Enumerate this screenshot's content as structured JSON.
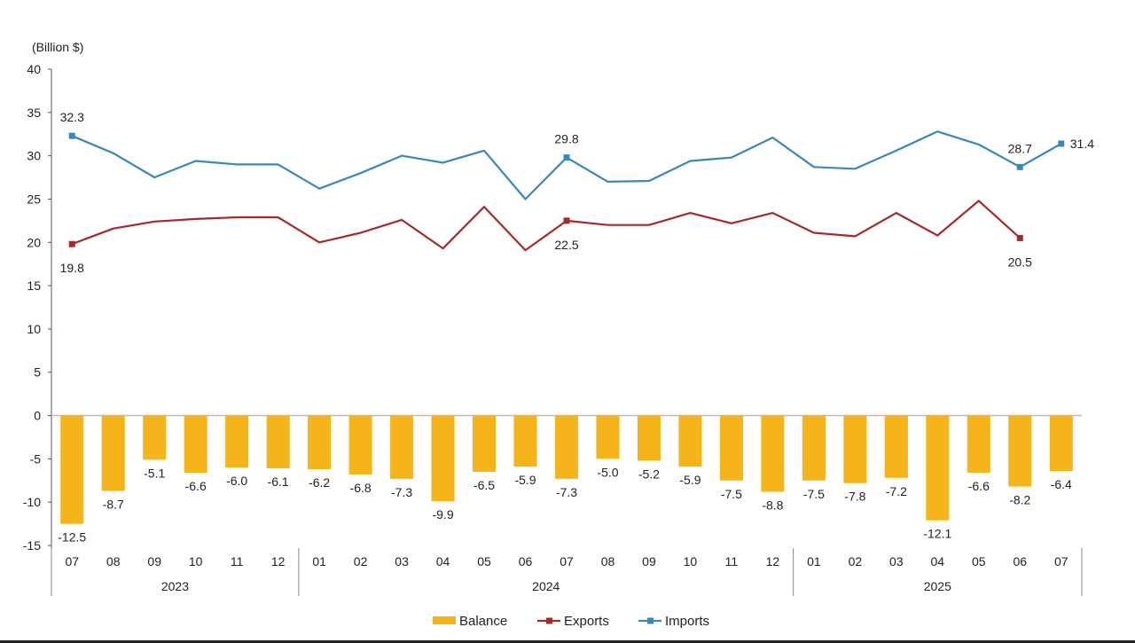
{
  "chart_data": {
    "type": "bar",
    "unit_label": "(Billion $)",
    "ylim": [
      -15,
      40
    ],
    "yticks": [
      40,
      35,
      30,
      25,
      20,
      15,
      10,
      5,
      0,
      -5,
      -10,
      -15
    ],
    "categories": [
      "07",
      "08",
      "09",
      "10",
      "11",
      "12",
      "01",
      "02",
      "03",
      "04",
      "05",
      "06",
      "07",
      "08",
      "09",
      "10",
      "11",
      "12",
      "01",
      "02",
      "03",
      "04",
      "05",
      "06",
      "07"
    ],
    "year_groups": [
      {
        "label": "2023",
        "start": 0,
        "end": 5
      },
      {
        "label": "2024",
        "start": 6,
        "end": 17
      },
      {
        "label": "2025",
        "start": 18,
        "end": 24
      }
    ],
    "series": [
      {
        "name": "Balance",
        "kind": "bar",
        "color": "#F4B41A",
        "values": [
          -12.5,
          -8.7,
          -5.1,
          -6.6,
          -6.0,
          -6.1,
          -6.2,
          -6.8,
          -7.3,
          -9.9,
          -6.5,
          -5.9,
          -7.3,
          -5.0,
          -5.2,
          -5.9,
          -7.5,
          -8.8,
          -7.5,
          -7.8,
          -7.2,
          -12.1,
          -6.6,
          -8.2,
          -6.4
        ],
        "labels": [
          "-12.5",
          "-8.7",
          "-5.1",
          "-6.6",
          "-6.0",
          "-6.1",
          "-6.2",
          "-6.8",
          "-7.3",
          "-9.9",
          "-6.5",
          "-5.9",
          "-7.3",
          "-5.0",
          "-5.2",
          "-5.9",
          "-7.5",
          "-8.8",
          "-7.5",
          "-7.8",
          "-7.2",
          "-12.1",
          "-6.6",
          "-8.2",
          "-6.4"
        ]
      },
      {
        "name": "Exports",
        "kind": "line",
        "color": "#A52A2A",
        "values": [
          19.8,
          21.6,
          22.4,
          22.7,
          22.9,
          22.9,
          20.0,
          21.1,
          22.6,
          19.3,
          24.1,
          19.1,
          22.5,
          22.0,
          22.0,
          23.4,
          22.2,
          23.4,
          21.1,
          20.7,
          23.4,
          20.8,
          24.8,
          20.5,
          null
        ],
        "labeled": [
          {
            "index": 0,
            "text": "19.8"
          },
          {
            "index": 12,
            "text": "22.5"
          },
          {
            "index": 23,
            "text": "20.5"
          }
        ]
      },
      {
        "name": "Imports",
        "kind": "line",
        "color": "#3A87B9",
        "values": [
          32.3,
          30.3,
          27.5,
          29.4,
          29.0,
          29.0,
          26.2,
          28.0,
          30.0,
          29.2,
          30.6,
          25.0,
          29.8,
          27.0,
          27.1,
          29.4,
          29.8,
          32.1,
          28.7,
          28.5,
          30.6,
          32.8,
          31.3,
          28.7,
          31.4
        ],
        "labeled": [
          {
            "index": 0,
            "text": "32.3"
          },
          {
            "index": 12,
            "text": "29.8"
          },
          {
            "index": 23,
            "text": "28.7"
          },
          {
            "index": 24,
            "text": "31.4"
          }
        ]
      }
    ],
    "legend": [
      "Balance",
      "Exports",
      "Imports"
    ],
    "legend_position": "bottom",
    "grid": false
  }
}
